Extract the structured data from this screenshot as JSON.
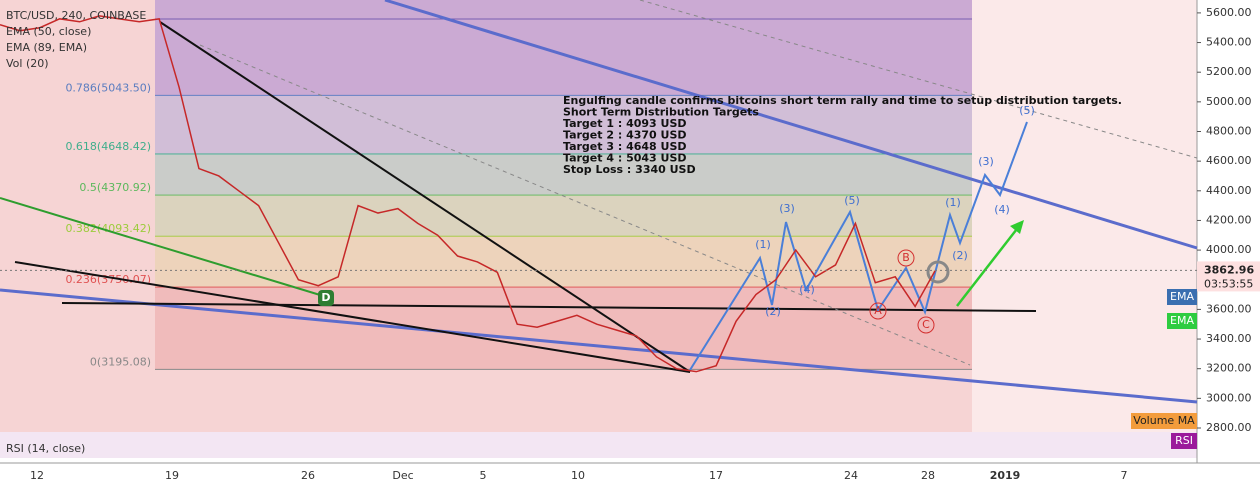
{
  "chart_data": {
    "type": "line",
    "legend": [
      "BTC/USD, 240, COINBASE",
      "EMA (50, close)",
      "EMA (89, EMA)",
      "Vol (20)"
    ],
    "rsi_label": "RSI (14, close)",
    "series": [
      {
        "color": "#c62828",
        "values": [
          5520,
          5480,
          5500,
          5560,
          5540,
          5580,
          5560,
          5540,
          5560,
          5100,
          4550,
          4500,
          4400,
          4300,
          4050,
          3800,
          3760,
          3820,
          4300,
          4250,
          4280,
          4180,
          4100,
          3960,
          3920,
          3850,
          3500,
          3480,
          3520,
          3560,
          3500,
          3460,
          3420,
          3280,
          3200,
          3180,
          3220,
          3520,
          3700,
          3800,
          4000,
          3820,
          3900,
          4180,
          3780,
          3820,
          3620,
          3860
        ]
      }
    ],
    "ylim": [
      2773,
      5687
    ],
    "yticks": [
      {
        "value": 2800,
        "label": "2800.00"
      },
      {
        "value": 3000,
        "label": "3000.00"
      },
      {
        "value": 3200,
        "label": "3200.00"
      },
      {
        "value": 3400,
        "label": "3400.00"
      },
      {
        "value": 3600,
        "label": "3600.00"
      },
      {
        "value": 3800,
        "label": "3800.00"
      },
      {
        "value": 4000,
        "label": "4000.00"
      },
      {
        "value": 4200,
        "label": "4200.00"
      },
      {
        "value": 4400,
        "label": "4400.00"
      },
      {
        "value": 4600,
        "label": "4600.00"
      },
      {
        "value": 4800,
        "label": "4800.00"
      },
      {
        "value": 5000,
        "label": "5000.00"
      },
      {
        "value": 5200,
        "label": "5200.00"
      },
      {
        "value": 5400,
        "label": "5400.00"
      },
      {
        "value": 5600,
        "label": "5600.00"
      }
    ],
    "fib_levels": [
      {
        "value": 5043.5,
        "label": "0.786(5043.50)",
        "color": "#5b7dc0"
      },
      {
        "value": 4648.42,
        "label": "0.618(4648.42)",
        "color": "#3fae8c"
      },
      {
        "value": 4370.92,
        "label": "0.5(4370.92)",
        "color": "#5cb85c"
      },
      {
        "value": 4093.42,
        "label": "0.382(4093.42)",
        "color": "#9ccc3c"
      },
      {
        "value": 3750.07,
        "label": "0.236(3750.07)",
        "color": "#e05252"
      },
      {
        "value": 3195.08,
        "label": "0(3195.08)",
        "color": "#888888"
      }
    ],
    "x_labels": [
      "12",
      "19",
      "26",
      "Dec",
      "5",
      "10",
      "17",
      "24",
      "28",
      "2019",
      "7"
    ],
    "annotation": [
      "Engulfing candle confirms bitcoins short term rally and time to setup distribution targets.",
      "Short Term Distribution Targets",
      "Target 1 : 4093 USD",
      "Target 2 : 4370 USD",
      "Target 3 : 4648 USD",
      "Target 4 : 5043 USD",
      "Stop Loss : 3340 USD"
    ],
    "wave_labels": [
      "(1)",
      "(2)",
      "(3)",
      "(4)",
      "(5)",
      "(1)",
      "(2)",
      "(3)",
      "(4)",
      "(5)"
    ],
    "abc_labels": [
      "A",
      "B",
      "C"
    ],
    "d_label": "D",
    "last_price": 3862.96,
    "countdown": "03:53:55",
    "axis_tags": [
      "EMA",
      "EMA",
      "Volume MA",
      "RSI"
    ]
  }
}
